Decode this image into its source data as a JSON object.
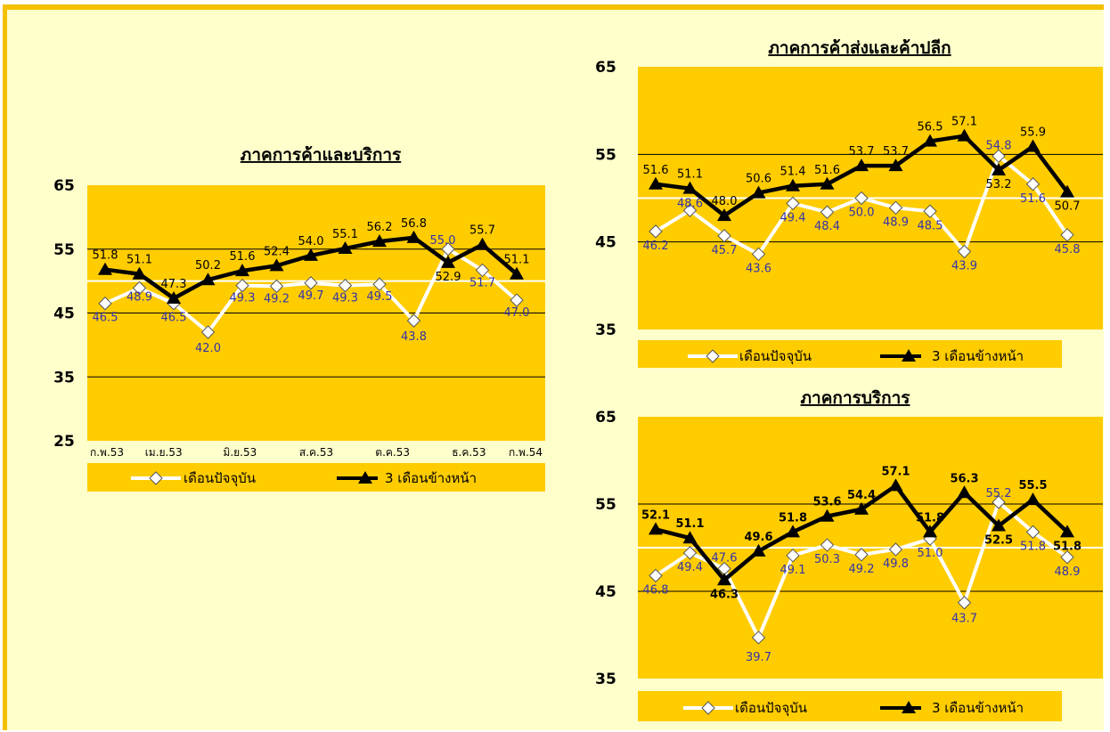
{
  "colors": {
    "plot_bg": "#FFCC00",
    "frame_bg": "#FFFFCC",
    "frame_border": "#F5C000",
    "current_line": "#FFFFFF",
    "forward_line": "#000000",
    "current_label": "#3333AA",
    "forward_label": "#000000",
    "last_tick": "#2222CC"
  },
  "chart_data": [
    {
      "type": "line",
      "title": "ภาคการค้าและบริการ",
      "ylim": [
        25,
        65
      ],
      "yticks": [
        "25",
        "35",
        "45",
        "55",
        "65"
      ],
      "xtick_labels": [
        "ก.พ.53",
        "เม.ย.53",
        "มิ.ย.53",
        "ส.ค.53",
        "ต.ค.53",
        "ธ.ค.53",
        "ก.พ.54"
      ],
      "legend": {
        "position": "bottom",
        "items": [
          "เดือนปัจจุบัน",
          "3 เดือนข้างหน้า"
        ]
      },
      "series": [
        {
          "name": "เดือนปัจจุบัน",
          "marker": "diamond",
          "values": [
            46.5,
            48.9,
            46.5,
            42.0,
            49.3,
            49.2,
            49.7,
            49.3,
            49.5,
            43.8,
            55.0,
            51.7,
            47.0
          ],
          "labels": [
            "46.5",
            "48.9",
            "46.5",
            "42.0",
            "49.3",
            "49.2",
            "49.7",
            "49.3",
            "49.5",
            "43.8",
            "55.0",
            "51.7",
            "47.0"
          ]
        },
        {
          "name": "3 เดือนข้างหน้า",
          "marker": "triangle",
          "values": [
            51.8,
            51.1,
            47.3,
            50.2,
            51.6,
            52.4,
            54.0,
            55.1,
            56.2,
            56.8,
            52.9,
            55.7,
            51.1
          ],
          "labels": [
            "51.8",
            "51.1",
            "47.3",
            "50.2",
            "51.6",
            "52.4",
            "54.0",
            "55.1",
            "56.2",
            "56.8",
            "52.9",
            "55.7",
            "51.1"
          ]
        }
      ]
    },
    {
      "type": "line",
      "title": "ภาคการค้าส่งและค้าปลีก",
      "ylim": [
        35,
        65
      ],
      "yticks": [
        "35",
        "45",
        "55",
        "65"
      ],
      "legend": {
        "position": "bottom",
        "items": [
          "เดือนปัจจุบัน",
          "3 เดือนข้างหน้า"
        ]
      },
      "series": [
        {
          "name": "เดือนปัจจุบัน",
          "marker": "diamond",
          "values": [
            46.2,
            48.6,
            45.7,
            43.6,
            49.4,
            48.4,
            50.0,
            48.9,
            48.5,
            43.9,
            54.8,
            51.6,
            45.8
          ],
          "labels": [
            "46.2",
            "48.6",
            "45.7",
            "43.6",
            "49.4",
            "48.4",
            "50.0",
            "48.9",
            "48.5",
            "43.9",
            "54.8",
            "51.6",
            "45.8"
          ]
        },
        {
          "name": "3 เดือนข้างหน้า",
          "marker": "triangle",
          "values": [
            51.6,
            51.1,
            48.0,
            50.6,
            51.4,
            51.6,
            53.7,
            53.7,
            56.5,
            57.1,
            53.2,
            55.9,
            50.7
          ],
          "labels": [
            "51.6",
            "51.1",
            "48.0",
            "50.6",
            "51.4",
            "51.6",
            "53.7",
            "53.7",
            "56.5",
            "57.1",
            "53.2",
            "55.9",
            "50.7"
          ]
        }
      ]
    },
    {
      "type": "line",
      "title": "ภาคการบริการ",
      "ylim": [
        35,
        65
      ],
      "yticks": [
        "35",
        "45",
        "55",
        "65"
      ],
      "legend": {
        "position": "bottom",
        "items": [
          "เดือนปัจจุบัน",
          "3 เดือนข้างหน้า"
        ]
      },
      "series": [
        {
          "name": "เดือนปัจจุบัน",
          "marker": "diamond",
          "values": [
            46.8,
            49.4,
            47.6,
            39.7,
            49.1,
            50.3,
            49.2,
            49.8,
            51.0,
            43.7,
            55.2,
            51.8,
            48.9
          ],
          "labels": [
            "46.8",
            "49.4",
            "47.6",
            "39.7",
            "49.1",
            "50.3",
            "49.2",
            "49.8",
            "51.0",
            "43.7",
            "55.2",
            "51.8",
            "48.9"
          ]
        },
        {
          "name": "3 เดือนข้างหน้า",
          "marker": "triangle",
          "values": [
            52.1,
            51.1,
            46.3,
            49.6,
            51.8,
            53.6,
            54.4,
            57.1,
            51.8,
            56.3,
            52.5,
            55.5,
            51.8
          ],
          "labels": [
            "52.1",
            "51.1",
            "46.3",
            "49.6",
            "51.8",
            "53.6",
            "54.4",
            "57.1",
            "51.8",
            "56.3",
            "52.5",
            "55.5",
            "51.8"
          ]
        }
      ]
    }
  ]
}
